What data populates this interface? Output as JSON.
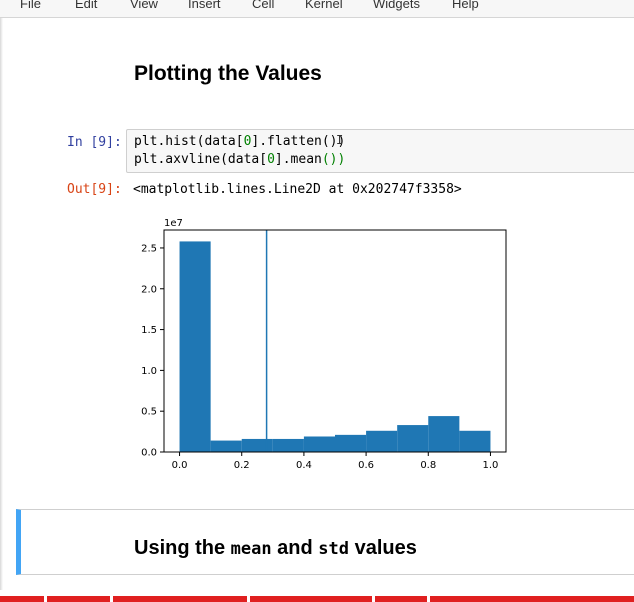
{
  "menu": {
    "items": [
      "File",
      "Edit",
      "View",
      "Insert",
      "Cell",
      "Kernel",
      "Widgets",
      "Help"
    ]
  },
  "section1": {
    "heading": "Plotting the Values"
  },
  "cell": {
    "in_prompt": "In [9]:",
    "out_prompt": "Out[9]:",
    "line1": {
      "a": "plt.hist(data[",
      "num": "0",
      "b": "].flatten()",
      "c": ")"
    },
    "line2": {
      "a": "plt.axvline(data[",
      "num": "0",
      "b": "].mean",
      "c": "())"
    },
    "output": "<matplotlib.lines.Line2D at 0x202747f3358>"
  },
  "section2": {
    "heading_a": "Using the ",
    "heading_mono1": "mean",
    "heading_b": " and ",
    "heading_mono2": "std",
    "heading_c": " values"
  },
  "chart_data": {
    "type": "bar",
    "title": "",
    "xlabel": "",
    "ylabel": "",
    "y_offset_label": "1e7",
    "bin_edges": [
      0.0,
      0.1,
      0.2,
      0.3,
      0.4,
      0.5,
      0.6,
      0.7,
      0.8,
      0.9,
      1.0
    ],
    "values": [
      2.58,
      0.14,
      0.16,
      0.16,
      0.19,
      0.21,
      0.26,
      0.33,
      0.44,
      0.26
    ],
    "xlim": [
      -0.05,
      1.05
    ],
    "ylim": [
      0.0,
      2.72
    ],
    "xticks": [
      0.0,
      0.2,
      0.4,
      0.6,
      0.8,
      1.0
    ],
    "xtick_labels": [
      "0.0",
      "0.2",
      "0.4",
      "0.6",
      "0.8",
      "1.0"
    ],
    "yticks": [
      0.0,
      0.5,
      1.0,
      1.5,
      2.0,
      2.5
    ],
    "ytick_labels": [
      "0.0",
      "0.5",
      "1.0",
      "1.5",
      "2.0",
      "2.5"
    ],
    "vline_x": 0.28,
    "bar_color": "#1f77b4",
    "vline_color": "#1f77b4",
    "grid": false
  }
}
